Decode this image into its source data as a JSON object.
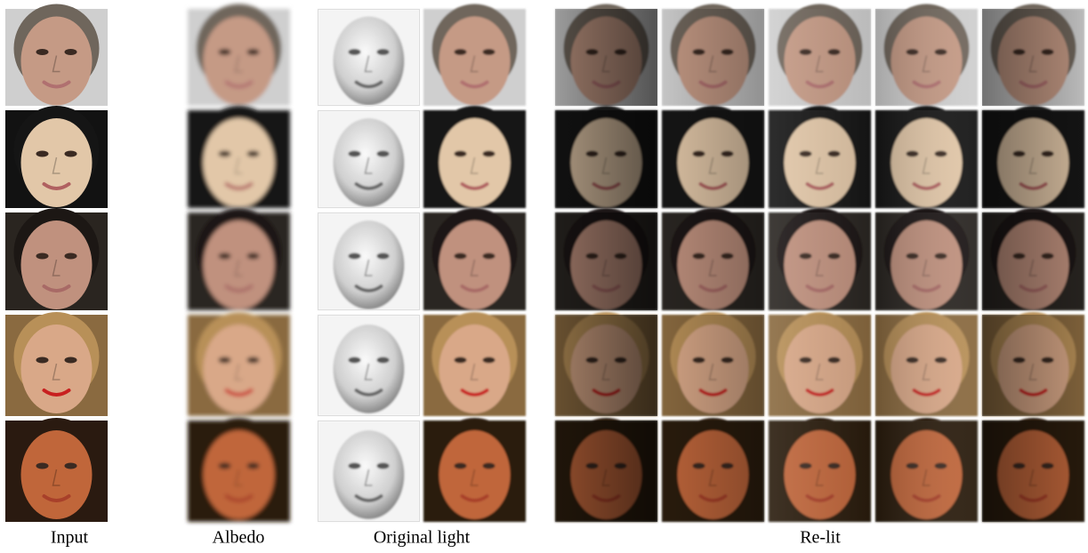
{
  "captions": {
    "input": "Input",
    "albedo": "Albedo",
    "original_light": "Original light",
    "relit": "Re-lit"
  }
}
